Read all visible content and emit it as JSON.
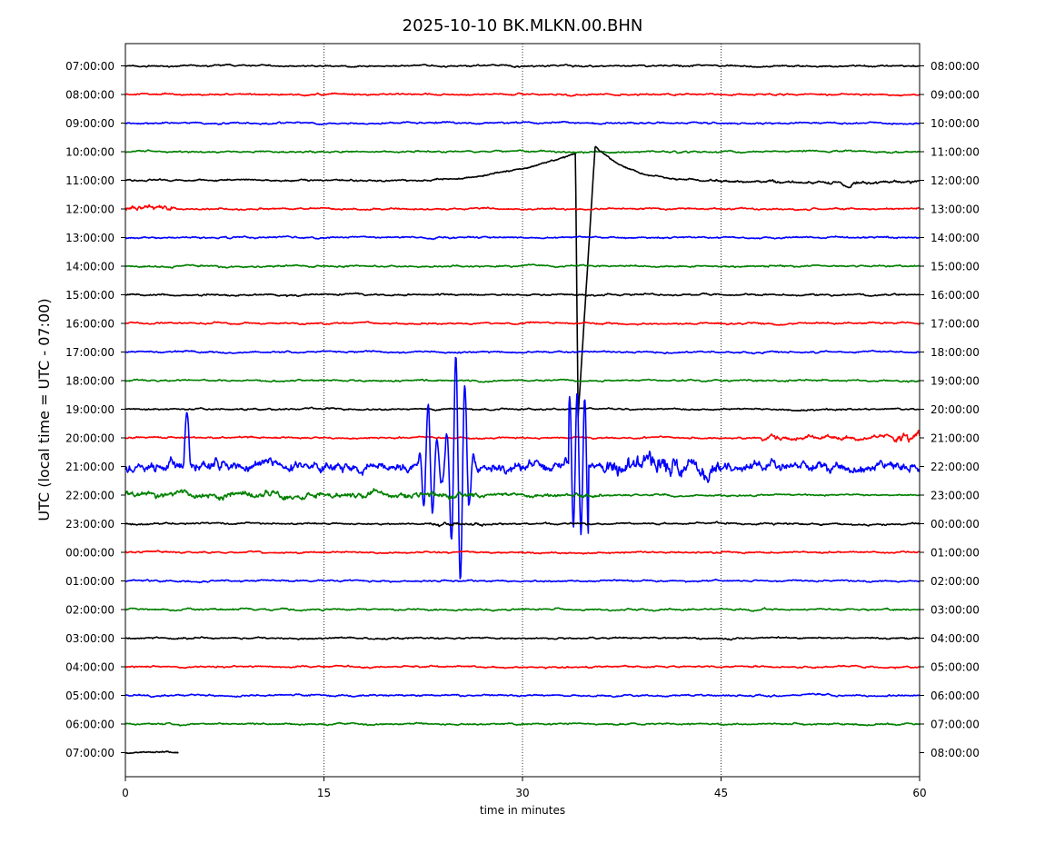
{
  "chart_data": {
    "type": "line",
    "title": "2025-10-10 BK.MLKN.00.BHN",
    "xlabel": "time in minutes",
    "ylabel": "UTC (local time = UTC - 07:00)",
    "xlim": [
      0,
      60
    ],
    "x_ticks": [
      0,
      15,
      30,
      45,
      60
    ],
    "grid": "vertical dotted at 15, 30, 45",
    "trace_colors": [
      "#000000",
      "#ff0000",
      "#0000ff",
      "#008000"
    ],
    "left_labels": [
      "07:00:00",
      "08:00:00",
      "09:00:00",
      "10:00:00",
      "11:00:00",
      "12:00:00",
      "13:00:00",
      "14:00:00",
      "15:00:00",
      "16:00:00",
      "17:00:00",
      "18:00:00",
      "19:00:00",
      "20:00:00",
      "21:00:00",
      "22:00:00",
      "23:00:00",
      "00:00:00",
      "01:00:00",
      "02:00:00",
      "03:00:00",
      "04:00:00",
      "05:00:00",
      "06:00:00",
      "07:00:00"
    ],
    "right_labels": [
      "08:00:00",
      "09:00:00",
      "10:00:00",
      "11:00:00",
      "12:00:00",
      "13:00:00",
      "14:00:00",
      "15:00:00",
      "16:00:00",
      "17:00:00",
      "18:00:00",
      "19:00:00",
      "20:00:00",
      "21:00:00",
      "22:00:00",
      "23:00:00",
      "00:00:00",
      "01:00:00",
      "02:00:00",
      "03:00:00",
      "04:00:00",
      "05:00:00",
      "06:00:00",
      "07:00:00",
      "08:00:00"
    ],
    "events": [
      {
        "row": 4,
        "description": "baseline ramp, sharp drop at ~34 min, recovery peak at ~35.5 min"
      },
      {
        "row": 14,
        "description": "large bursts between ~22 and ~27 min and ~34 min"
      },
      {
        "row": 13,
        "description": "noisy segment from ~48 to 60 min"
      },
      {
        "row": 15,
        "description": "elevated noise 0–27 min"
      }
    ],
    "last_row_end_minute": 4
  }
}
